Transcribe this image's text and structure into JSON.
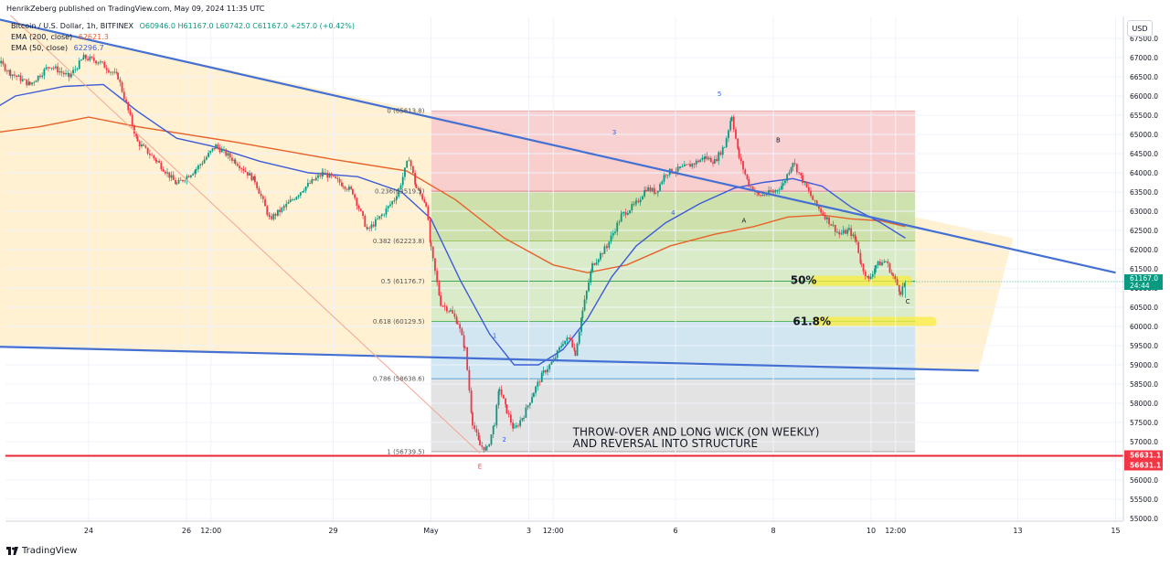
{
  "header": {
    "author": "HenrikZeberg",
    "published_text": "published on TradingView.com,",
    "date": "May 09, 2024 11:35 UTC"
  },
  "legend": {
    "symbol": "Bitcoin / U.S. Dollar, 1h, BITFINEX",
    "open": "O60946.0",
    "high": "H61167.0",
    "low": "L60742.0",
    "close": "C61167.0",
    "change": "+257.0 (+0.42%)",
    "ema200_label": "EMA (200, close)",
    "ema200_value": "62621.3",
    "ema50_label": "EMA (50, close)",
    "ema50_value": "62296.7"
  },
  "currency_button": "USD",
  "footer": {
    "brand": "TradingView"
  },
  "colors": {
    "up": "#089981",
    "down": "#f23645",
    "ema200": "#e8622a",
    "ema50": "#3d5bd9",
    "trendline": "#4470d4",
    "support_line": "#e8273a",
    "fib_0_236": "#f7c9cb",
    "fib_236_382": "#c9dfa7",
    "fib_382_618": "#d3eac9",
    "fib_618_786": "#cce4f3",
    "fib_786_1": "#e1e1e1",
    "wedge": "#fff0cc",
    "highlight": "#f9ec3e"
  },
  "chart_data": {
    "type": "candlestick",
    "symbol": "Bitcoin / U.S. Dollar",
    "interval": "1h",
    "exchange": "BITFINEX",
    "ylim": [
      54900,
      68100
    ],
    "price_labels": [
      55000,
      55500,
      56000,
      56500,
      57000,
      57500,
      58000,
      58500,
      59000,
      59500,
      60000,
      60500,
      61000,
      61500,
      62000,
      62500,
      63000,
      63500,
      64000,
      64500,
      65000,
      65500,
      66000,
      66500,
      67000,
      67500
    ],
    "price_label_format": "dec1",
    "time_labels": [
      "24",
      "26",
      "12:00",
      "29",
      "May",
      "3",
      "12:00",
      "6",
      "8",
      "10",
      "12:00",
      "13",
      "15"
    ],
    "time_label_days": [
      24,
      26,
      26.5,
      29,
      31,
      33,
      33.5,
      36,
      38,
      40,
      40.5,
      43,
      45
    ],
    "last_price": {
      "value": 61167.0,
      "label": "61167.0",
      "countdown": "24:44",
      "color": "#089981"
    },
    "support_price": {
      "value": 56631.1,
      "labels": [
        "56631.1",
        "56631.1"
      ],
      "color": "#f23645"
    },
    "series": [
      {
        "name": "BTCUSD",
        "kind": "price",
        "points": [
          [
            21.2,
            66100
          ],
          [
            21.6,
            66700
          ],
          [
            22.0,
            67100
          ],
          [
            22.4,
            66600
          ],
          [
            22.8,
            66300
          ],
          [
            23.2,
            66800
          ],
          [
            23.6,
            66500
          ],
          [
            23.9,
            67000
          ],
          [
            24.2,
            66900
          ],
          [
            24.6,
            66500
          ],
          [
            25.0,
            64800
          ],
          [
            25.4,
            64300
          ],
          [
            25.8,
            63700
          ],
          [
            26.2,
            64100
          ],
          [
            26.6,
            64700
          ],
          [
            27.0,
            64300
          ],
          [
            27.4,
            63800
          ],
          [
            27.7,
            62800
          ],
          [
            28.0,
            63100
          ],
          [
            28.4,
            63600
          ],
          [
            28.8,
            64000
          ],
          [
            29.2,
            63700
          ],
          [
            29.4,
            63500
          ],
          [
            29.7,
            62500
          ],
          [
            30.0,
            62900
          ],
          [
            30.3,
            63400
          ],
          [
            30.55,
            64400
          ],
          [
            30.7,
            63600
          ],
          [
            30.9,
            63200
          ],
          [
            31.0,
            62000
          ],
          [
            31.2,
            60600
          ],
          [
            31.4,
            60400
          ],
          [
            31.55,
            60100
          ],
          [
            31.7,
            59400
          ],
          [
            31.85,
            57500
          ],
          [
            32.0,
            56900
          ],
          [
            32.15,
            56800
          ],
          [
            32.3,
            57500
          ],
          [
            32.4,
            58400
          ],
          [
            32.55,
            57800
          ],
          [
            32.7,
            57300
          ],
          [
            32.9,
            57700
          ],
          [
            33.1,
            58300
          ],
          [
            33.3,
            58800
          ],
          [
            33.5,
            59100
          ],
          [
            33.7,
            59600
          ],
          [
            33.85,
            59700
          ],
          [
            33.95,
            59300
          ],
          [
            34.1,
            60400
          ],
          [
            34.3,
            61600
          ],
          [
            34.6,
            62100
          ],
          [
            34.9,
            62900
          ],
          [
            35.2,
            63200
          ],
          [
            35.4,
            63600
          ],
          [
            35.6,
            63500
          ],
          [
            35.8,
            64000
          ],
          [
            36.1,
            64100
          ],
          [
            36.3,
            64200
          ],
          [
            36.6,
            64400
          ],
          [
            36.8,
            64300
          ],
          [
            37.0,
            64700
          ],
          [
            37.15,
            65500
          ],
          [
            37.3,
            64400
          ],
          [
            37.5,
            63700
          ],
          [
            37.7,
            63400
          ],
          [
            38.0,
            63500
          ],
          [
            38.2,
            63700
          ],
          [
            38.4,
            64300
          ],
          [
            38.6,
            63800
          ],
          [
            38.85,
            63200
          ],
          [
            39.1,
            62800
          ],
          [
            39.35,
            62400
          ],
          [
            39.55,
            62500
          ],
          [
            39.7,
            62200
          ],
          [
            39.8,
            61600
          ],
          [
            39.95,
            61200
          ],
          [
            40.1,
            61600
          ],
          [
            40.3,
            61700
          ],
          [
            40.45,
            61300
          ],
          [
            40.6,
            60900
          ],
          [
            40.7,
            61167
          ]
        ]
      },
      {
        "name": "EMA (200, close)",
        "value": 62621.3,
        "points": [
          [
            21.2,
            64900
          ],
          [
            23.0,
            65200
          ],
          [
            24.0,
            65450
          ],
          [
            25.0,
            65200
          ],
          [
            27.0,
            64800
          ],
          [
            29.0,
            64350
          ],
          [
            30.5,
            64050
          ],
          [
            31.5,
            63300
          ],
          [
            32.5,
            62300
          ],
          [
            33.5,
            61600
          ],
          [
            34.2,
            61400
          ],
          [
            35.0,
            61600
          ],
          [
            35.9,
            62100
          ],
          [
            36.8,
            62400
          ],
          [
            37.6,
            62600
          ],
          [
            38.3,
            62850
          ],
          [
            39.0,
            62900
          ],
          [
            39.6,
            62800
          ],
          [
            40.2,
            62750
          ],
          [
            40.7,
            62600
          ]
        ]
      },
      {
        "name": "EMA (50, close)",
        "value": 62296.7,
        "points": [
          [
            21.2,
            65000
          ],
          [
            22.5,
            66000
          ],
          [
            23.5,
            66250
          ],
          [
            24.3,
            66300
          ],
          [
            25.0,
            65600
          ],
          [
            25.8,
            64900
          ],
          [
            26.5,
            64700
          ],
          [
            27.5,
            64300
          ],
          [
            28.5,
            64000
          ],
          [
            29.5,
            63900
          ],
          [
            30.4,
            63500
          ],
          [
            31.0,
            62800
          ],
          [
            31.6,
            61200
          ],
          [
            32.2,
            59800
          ],
          [
            32.7,
            59000
          ],
          [
            33.2,
            59000
          ],
          [
            33.7,
            59400
          ],
          [
            34.2,
            60200
          ],
          [
            34.7,
            61300
          ],
          [
            35.2,
            62100
          ],
          [
            35.8,
            62700
          ],
          [
            36.5,
            63200
          ],
          [
            37.2,
            63600
          ],
          [
            37.8,
            63750
          ],
          [
            38.4,
            63850
          ],
          [
            39.0,
            63650
          ],
          [
            39.6,
            63100
          ],
          [
            40.2,
            62700
          ],
          [
            40.7,
            62300
          ]
        ]
      }
    ],
    "fibonacci": {
      "range": [
        31.0,
        40.9
      ],
      "levels": [
        {
          "ratio": "0",
          "price": 65613.8,
          "label": "0 (65613.8)"
        },
        {
          "ratio": "0.236",
          "price": 63519.5,
          "label": "0.236(63519.5)"
        },
        {
          "ratio": "0.382",
          "price": 62223.8,
          "label": "0.382 (62223.8)"
        },
        {
          "ratio": "0.5",
          "price": 61176.7,
          "label": "0.5 (61176.7)"
        },
        {
          "ratio": "0.618",
          "price": 60129.5,
          "label": "0.618 (60129.5)"
        },
        {
          "ratio": "0.786",
          "price": 58638.6,
          "label": "0.786 (58638.6)"
        },
        {
          "ratio": "1",
          "price": 56739.5,
          "label": "1 (56739.5)"
        }
      ]
    },
    "trendlines": [
      {
        "name": "upper-wedge-line",
        "from": [
          21.8,
          68100
        ],
        "to": [
          45.0,
          61400
        ]
      },
      {
        "name": "lower-wedge-line",
        "from": [
          21.2,
          59500
        ],
        "to": [
          42.2,
          58850
        ]
      },
      {
        "name": "diagonal-line",
        "from": [
          22.4,
          68100
        ],
        "to": [
          32.0,
          56700
        ]
      }
    ],
    "wedge_fill": [
      [
        21.2,
        68100
      ],
      [
        21.8,
        68100
      ],
      [
        42.9,
        62300
      ],
      [
        42.2,
        58850
      ],
      [
        21.2,
        59500
      ]
    ],
    "wave_labels": [
      {
        "text": "5",
        "at": [
          36.9,
          66000
        ],
        "color": "#2962ff"
      },
      {
        "text": "3",
        "at": [
          34.75,
          65000
        ],
        "color": "#2962ff"
      },
      {
        "text": "4",
        "at": [
          35.95,
          62900
        ],
        "color": "#2962ff"
      },
      {
        "text": "1",
        "at": [
          32.3,
          59700
        ],
        "color": "#2962ff"
      },
      {
        "text": "2",
        "at": [
          32.5,
          57000
        ],
        "color": "#2962ff"
      },
      {
        "text": "B",
        "at": [
          38.1,
          64800
        ],
        "color": "#131722"
      },
      {
        "text": "A",
        "at": [
          37.4,
          62700
        ],
        "color": "#131722"
      },
      {
        "text": "C",
        "at": [
          40.75,
          60600
        ],
        "color": "#131722"
      },
      {
        "text": "E",
        "at": [
          32.0,
          56300
        ],
        "color": "#f23645"
      }
    ],
    "annotations": [
      {
        "text": "50%",
        "at": [
          38.35,
          61200
        ],
        "highlight": [
          40.8,
          61200
        ]
      },
      {
        "text": "61.8%",
        "at": [
          38.4,
          60130
        ],
        "highlight": [
          41.3,
          60130
        ]
      },
      {
        "text": "THROW-OVER AND LONG WICK (ON WEEKLY)",
        "at": [
          33.9,
          57250
        ]
      },
      {
        "text": "AND REVERSAL INTO STRUCTURE",
        "at": [
          33.9,
          56950
        ]
      }
    ]
  }
}
